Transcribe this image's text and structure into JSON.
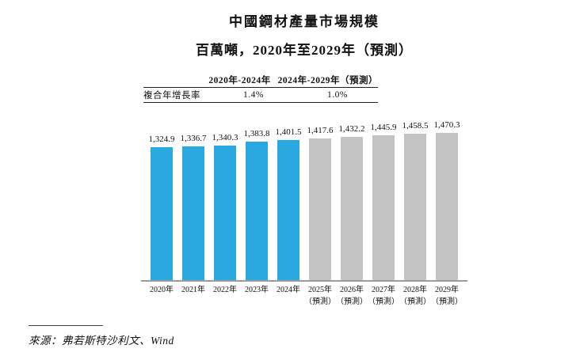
{
  "chart_data": {
    "type": "bar",
    "title": "中國鋼材產量市場規模",
    "subtitle": "百萬噸，2020年至2029年（預測）",
    "xlabel": "",
    "ylabel": "",
    "ylim": [
      0,
      1470.3
    ],
    "grid": false,
    "legend": "none",
    "categories": [
      {
        "year": "2020年",
        "note": ""
      },
      {
        "year": "2021年",
        "note": ""
      },
      {
        "year": "2022年",
        "note": ""
      },
      {
        "year": "2023年",
        "note": ""
      },
      {
        "year": "2024年",
        "note": ""
      },
      {
        "year": "2025年",
        "note": "（預測）"
      },
      {
        "year": "2026年",
        "note": "（預測）"
      },
      {
        "year": "2027年",
        "note": "（預測）"
      },
      {
        "year": "2028年",
        "note": "（預測）"
      },
      {
        "year": "2029年",
        "note": "（預測）"
      }
    ],
    "values": [
      1324.9,
      1336.7,
      1340.3,
      1383.8,
      1401.5,
      1417.6,
      1432.2,
      1445.9,
      1458.5,
      1470.3
    ],
    "value_labels": [
      "1,324.9",
      "1,336.7",
      "1,340.3",
      "1,383.8",
      "1,401.5",
      "1,417.6",
      "1,432.2",
      "1,445.9",
      "1,458.5",
      "1,470.3"
    ],
    "actual_count": 5,
    "colors": {
      "actual": "#29A9E0",
      "forecast": "#C3C3C3",
      "axis": "#9C9C9C"
    }
  },
  "cagr_table": {
    "row_label": "複合年增長率",
    "col_headers": [
      "2020年-2024年",
      "2024年-2029年（預測）"
    ],
    "values": [
      "1.4%",
      "1.0%"
    ]
  },
  "source": {
    "text": "來源：弗若斯特沙利文、Wind"
  }
}
